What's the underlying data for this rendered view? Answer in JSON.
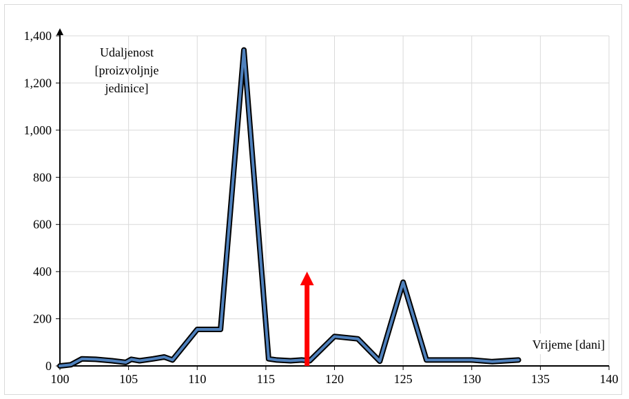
{
  "chart_data": {
    "type": "line",
    "xlim": [
      100,
      140
    ],
    "ylim": [
      0,
      1400
    ],
    "xticks": [
      100,
      105,
      110,
      115,
      120,
      125,
      130,
      135,
      140
    ],
    "yticks": [
      0,
      200,
      400,
      600,
      800,
      1000,
      1200,
      1400
    ],
    "xtick_labels": [
      "100",
      "105",
      "110",
      "115",
      "120",
      "125",
      "130",
      "135",
      "140"
    ],
    "ytick_labels": [
      "0",
      "200",
      "400",
      "600",
      "800",
      "1,000",
      "1,200",
      "1,400"
    ],
    "grid": true,
    "ylabel_lines": [
      "Udaljenost",
      "[proizvoljnje",
      "jedinice]"
    ],
    "xlabel": "Vrijeme [dani]",
    "series": [
      {
        "color": "#4f81bd",
        "outline_color": "#000000",
        "x": [
          100,
          100.8,
          101.6,
          102.6,
          103.8,
          104.8,
          105.2,
          105.8,
          106.8,
          107.6,
          108.2,
          110,
          111.7,
          113.4,
          115.2,
          115.8,
          116.8,
          117.6,
          118.2,
          120,
          121.7,
          123.3,
          125,
          126.7,
          128.2,
          130,
          131.5,
          133.4
        ],
        "y": [
          0,
          5,
          30,
          28,
          22,
          15,
          28,
          22,
          30,
          38,
          25,
          155,
          155,
          1340,
          30,
          25,
          22,
          25,
          22,
          125,
          115,
          20,
          355,
          25,
          25,
          25,
          18,
          25
        ]
      }
    ],
    "annotations": [
      {
        "type": "arrow",
        "x": 118,
        "y_from": 0,
        "y_to": 400,
        "color": "#ff0000"
      }
    ]
  }
}
